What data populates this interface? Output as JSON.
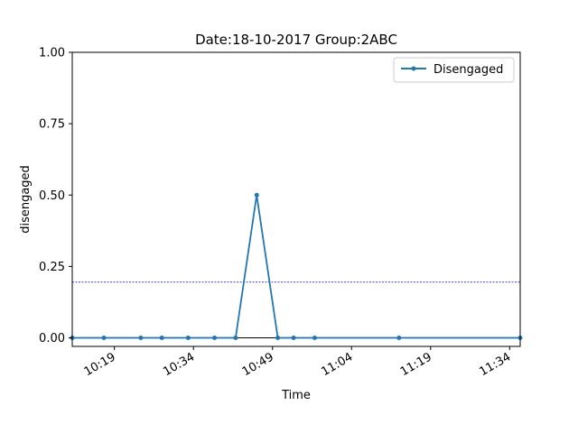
{
  "chart_data": {
    "type": "line",
    "title": "Date:18-10-2017  Group:2ABC",
    "xlabel": "Time",
    "ylabel": "disengaged",
    "x_unit": "time of day (HH:MM)",
    "x_ticks": [
      "10:19",
      "10:34",
      "10:49",
      "11:04",
      "11:19",
      "11:34"
    ],
    "xlim": [
      "10:11",
      "11:36"
    ],
    "ylim": [
      -0.03,
      1.0
    ],
    "y_ticks": [
      "0.00",
      "0.25",
      "0.50",
      "0.75",
      "1.00"
    ],
    "series": [
      {
        "name": "Disengaged",
        "color": "#1f77b4",
        "x": [
          "10:11",
          "10:17",
          "10:24",
          "10:28",
          "10:33",
          "10:38",
          "10:42",
          "10:46",
          "10:50",
          "10:53",
          "10:57",
          "11:13",
          "11:36"
        ],
        "y": [
          0,
          0,
          0,
          0,
          0,
          0,
          0,
          0.5,
          0,
          0,
          0,
          0,
          0
        ]
      }
    ],
    "reference_lines": [
      {
        "y": 0.195,
        "color": "#0000ff",
        "style": "dashed"
      },
      {
        "y": 0.0,
        "color": "#000000",
        "style": "solid"
      }
    ],
    "grid": false,
    "legend_position": "upper right"
  }
}
